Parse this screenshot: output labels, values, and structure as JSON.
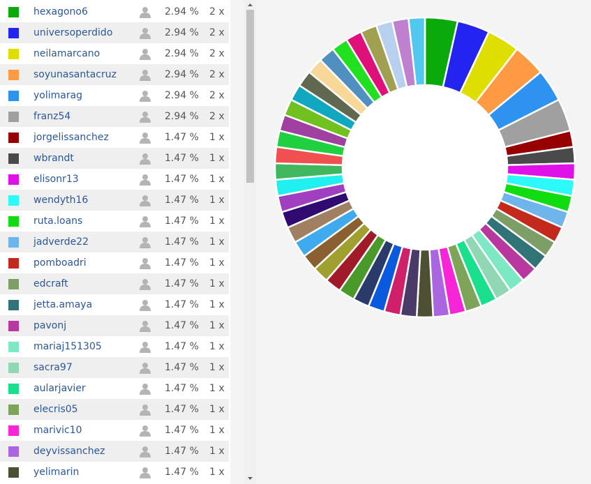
{
  "table": {
    "rows": [
      {
        "name": "hexagono6",
        "color": "#0aaa0a",
        "percent": "2.94 %",
        "votes": "2 x"
      },
      {
        "name": "universoperdido",
        "color": "#2424f0",
        "percent": "2.94 %",
        "votes": "2 x"
      },
      {
        "name": "neilamarcano",
        "color": "#dede00",
        "percent": "2.94 %",
        "votes": "2 x"
      },
      {
        "name": "soyunasantacruz",
        "color": "#ff9a44",
        "percent": "2.94 %",
        "votes": "2 x"
      },
      {
        "name": "yolimarag",
        "color": "#2e92f0",
        "percent": "2.94 %",
        "votes": "2 x"
      },
      {
        "name": "franz54",
        "color": "#a0a0a0",
        "percent": "2.94 %",
        "votes": "2 x"
      },
      {
        "name": "jorgelissanchez",
        "color": "#960000",
        "percent": "1.47 %",
        "votes": "1 x"
      },
      {
        "name": "wbrandt",
        "color": "#4a4a4a",
        "percent": "1.47 %",
        "votes": "1 x"
      },
      {
        "name": "elisonr13",
        "color": "#e010e8",
        "percent": "1.47 %",
        "votes": "1 x"
      },
      {
        "name": "wendyth16",
        "color": "#2cfafa",
        "percent": "1.47 %",
        "votes": "1 x"
      },
      {
        "name": "ruta.loans",
        "color": "#10dc10",
        "percent": "1.47 %",
        "votes": "1 x"
      },
      {
        "name": "jadverde22",
        "color": "#70b4ec",
        "percent": "1.47 %",
        "votes": "1 x"
      },
      {
        "name": "pomboadri",
        "color": "#c42a1c",
        "percent": "1.47 %",
        "votes": "1 x"
      },
      {
        "name": "edcraft",
        "color": "#7e9e68",
        "percent": "1.47 %",
        "votes": "1 x"
      },
      {
        "name": "jetta.amaya",
        "color": "#307478",
        "percent": "1.47 %",
        "votes": "1 x"
      },
      {
        "name": "pavonj",
        "color": "#b838a0",
        "percent": "1.47 %",
        "votes": "1 x"
      },
      {
        "name": "mariaj151305",
        "color": "#7ce8c4",
        "percent": "1.47 %",
        "votes": "1 x"
      },
      {
        "name": "sacra97",
        "color": "#90d8b4",
        "percent": "1.47 %",
        "votes": "1 x"
      },
      {
        "name": "aularjavier",
        "color": "#18e08c",
        "percent": "1.47 %",
        "votes": "1 x"
      },
      {
        "name": "elecris05",
        "color": "#7ea45a",
        "percent": "1.47 %",
        "votes": "1 x"
      },
      {
        "name": "marivic10",
        "color": "#f824d8",
        "percent": "1.47 %",
        "votes": "1 x"
      },
      {
        "name": "deyvissanchez",
        "color": "#aa66e0",
        "percent": "1.47 %",
        "votes": "1 x"
      },
      {
        "name": "yelimarin",
        "color": "#4e5034",
        "percent": "1.47 %",
        "votes": "1 x"
      }
    ]
  },
  "donut": {
    "values": [
      2.94,
      2.94,
      2.94,
      2.94,
      2.94,
      2.94,
      1.47,
      1.47,
      1.47,
      1.47,
      1.47,
      1.47,
      1.47,
      1.47,
      1.47,
      1.47,
      1.47,
      1.47,
      1.47,
      1.47,
      1.47,
      1.47,
      1.47,
      1.47,
      1.47,
      1.47,
      1.47,
      1.47,
      1.47,
      1.47,
      1.47,
      1.47,
      1.47,
      1.47,
      1.47,
      1.47,
      1.47,
      1.47,
      1.47,
      1.47,
      1.47,
      1.47,
      1.47,
      1.47,
      1.47,
      1.47,
      1.47,
      1.47,
      1.47,
      1.47,
      1.47
    ],
    "colors": [
      "#0aaa0a",
      "#2424f0",
      "#dede00",
      "#ff9a44",
      "#2e92f0",
      "#a0a0a0",
      "#960000",
      "#4a4a4a",
      "#e010e8",
      "#2cfafa",
      "#10dc10",
      "#70b4ec",
      "#c42a1c",
      "#7e9e68",
      "#307478",
      "#b838a0",
      "#7ce8c4",
      "#90d8b4",
      "#18e08c",
      "#7ea45a",
      "#f824d8",
      "#aa66e0",
      "#4e5034",
      "#4a3a68",
      "#d0206a",
      "#0a5ae0",
      "#2a3a6a",
      "#4a9a2a",
      "#a01a2a",
      "#a0a030",
      "#8a6030",
      "#40aaee",
      "#a08060",
      "#300a70",
      "#a040c0",
      "#20f0f0",
      "#40b860",
      "#f05050",
      "#20d040",
      "#a040a0",
      "#70c020",
      "#10a8c0",
      "#606850",
      "#f8d898",
      "#5090c0",
      "#20e020",
      "#e0107a",
      "#a0a050",
      "#b8d0f0",
      "#c080d0",
      "#50c8f0"
    ]
  }
}
